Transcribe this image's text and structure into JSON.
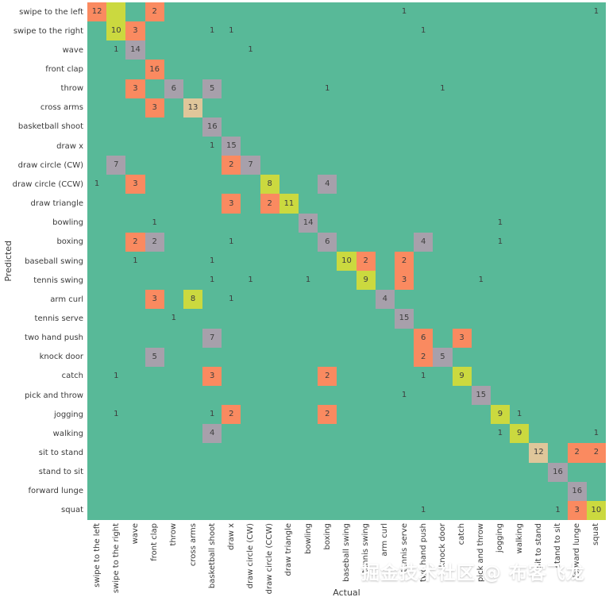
{
  "axes": {
    "x_title": "Actual",
    "y_title": "Predicted"
  },
  "watermark": {
    "text": "掘金技术社区 @ 布客飞龙",
    "color": "#ffffff"
  },
  "chart_data": {
    "type": "heatmap",
    "rows_axis": "Predicted",
    "cols_axis": "Actual",
    "background": "#58b998",
    "cell_text_color": "#3d3d3d",
    "cell_colors": {
      "orange": "#fa8a60",
      "gray": "#a7a0ab",
      "green": "#cbd93f",
      "tan": "#dfc69a",
      "teal": "transparent"
    },
    "categories": [
      "swipe to the left",
      "swipe to the right",
      "wave",
      "front clap",
      "throw",
      "cross arms",
      "basketball shoot",
      "draw x",
      "draw circle (CW)",
      "draw circle (CCW)",
      "draw triangle",
      "bowling",
      "boxing",
      "baseball swing",
      "tennis swing",
      "arm curl",
      "tennis serve",
      "two hand push",
      "knock door",
      "catch",
      "pick and throw",
      "jogging",
      "walking",
      "sit to stand",
      "stand to sit",
      "forward lunge",
      "squat"
    ],
    "cells": [
      [
        0,
        0,
        "12",
        "orange"
      ],
      [
        0,
        1,
        "",
        "green"
      ],
      [
        0,
        3,
        "2",
        "orange"
      ],
      [
        0,
        16,
        "1",
        "teal"
      ],
      [
        0,
        26,
        "1",
        "teal"
      ],
      [
        1,
        1,
        "10",
        "green"
      ],
      [
        1,
        2,
        "3",
        "orange"
      ],
      [
        1,
        6,
        "1",
        "teal"
      ],
      [
        1,
        7,
        "1",
        "teal"
      ],
      [
        1,
        17,
        "1",
        "teal"
      ],
      [
        2,
        1,
        "1",
        "teal"
      ],
      [
        2,
        2,
        "14",
        "gray"
      ],
      [
        2,
        8,
        "1",
        "teal"
      ],
      [
        3,
        3,
        "16",
        "orange"
      ],
      [
        4,
        2,
        "3",
        "orange"
      ],
      [
        4,
        4,
        "6",
        "gray"
      ],
      [
        4,
        6,
        "5",
        "gray"
      ],
      [
        4,
        12,
        "1",
        "teal"
      ],
      [
        4,
        18,
        "1",
        "teal"
      ],
      [
        5,
        3,
        "3",
        "orange"
      ],
      [
        5,
        5,
        "13",
        "tan"
      ],
      [
        6,
        6,
        "16",
        "gray"
      ],
      [
        7,
        6,
        "1",
        "teal"
      ],
      [
        7,
        7,
        "15",
        "gray"
      ],
      [
        8,
        1,
        "7",
        "gray"
      ],
      [
        8,
        7,
        "2",
        "orange"
      ],
      [
        8,
        8,
        "7",
        "gray"
      ],
      [
        9,
        0,
        "1",
        "teal"
      ],
      [
        9,
        2,
        "3",
        "orange"
      ],
      [
        9,
        9,
        "8",
        "green"
      ],
      [
        9,
        12,
        "4",
        "gray"
      ],
      [
        10,
        7,
        "3",
        "orange"
      ],
      [
        10,
        9,
        "2",
        "orange"
      ],
      [
        10,
        10,
        "11",
        "green"
      ],
      [
        11,
        3,
        "1",
        "teal"
      ],
      [
        11,
        11,
        "14",
        "gray"
      ],
      [
        11,
        21,
        "1",
        "teal"
      ],
      [
        12,
        2,
        "2",
        "orange"
      ],
      [
        12,
        3,
        "2",
        "gray"
      ],
      [
        12,
        7,
        "1",
        "teal"
      ],
      [
        12,
        12,
        "6",
        "gray"
      ],
      [
        12,
        17,
        "4",
        "gray"
      ],
      [
        12,
        21,
        "1",
        "teal"
      ],
      [
        13,
        2,
        "1",
        "teal"
      ],
      [
        13,
        6,
        "1",
        "teal"
      ],
      [
        13,
        13,
        "10",
        "green"
      ],
      [
        13,
        14,
        "2",
        "orange"
      ],
      [
        13,
        16,
        "2",
        "orange"
      ],
      [
        14,
        6,
        "1",
        "teal"
      ],
      [
        14,
        8,
        "1",
        "teal"
      ],
      [
        14,
        11,
        "1",
        "teal"
      ],
      [
        14,
        14,
        "9",
        "green"
      ],
      [
        14,
        16,
        "3",
        "orange"
      ],
      [
        14,
        20,
        "1",
        "teal"
      ],
      [
        15,
        3,
        "3",
        "orange"
      ],
      [
        15,
        5,
        "8",
        "green"
      ],
      [
        15,
        7,
        "1",
        "teal"
      ],
      [
        15,
        15,
        "4",
        "gray"
      ],
      [
        16,
        4,
        "1",
        "teal"
      ],
      [
        16,
        16,
        "15",
        "gray"
      ],
      [
        17,
        6,
        "7",
        "gray"
      ],
      [
        17,
        17,
        "6",
        "orange"
      ],
      [
        17,
        19,
        "3",
        "orange"
      ],
      [
        18,
        3,
        "5",
        "gray"
      ],
      [
        18,
        17,
        "2",
        "orange"
      ],
      [
        18,
        18,
        "5",
        "gray"
      ],
      [
        19,
        1,
        "1",
        "teal"
      ],
      [
        19,
        6,
        "3",
        "orange"
      ],
      [
        19,
        12,
        "2",
        "orange"
      ],
      [
        19,
        17,
        "1",
        "teal"
      ],
      [
        19,
        19,
        "9",
        "green"
      ],
      [
        20,
        16,
        "1",
        "teal"
      ],
      [
        20,
        20,
        "15",
        "gray"
      ],
      [
        21,
        1,
        "1",
        "teal"
      ],
      [
        21,
        6,
        "1",
        "teal"
      ],
      [
        21,
        7,
        "2",
        "orange"
      ],
      [
        21,
        12,
        "2",
        "orange"
      ],
      [
        21,
        21,
        "9",
        "green"
      ],
      [
        21,
        22,
        "1",
        "teal"
      ],
      [
        22,
        6,
        "4",
        "gray"
      ],
      [
        22,
        21,
        "1",
        "teal"
      ],
      [
        22,
        22,
        "9",
        "green"
      ],
      [
        22,
        26,
        "1",
        "teal"
      ],
      [
        23,
        23,
        "12",
        "tan"
      ],
      [
        23,
        25,
        "2",
        "orange"
      ],
      [
        23,
        26,
        "2",
        "orange"
      ],
      [
        24,
        24,
        "16",
        "gray"
      ],
      [
        25,
        25,
        "16",
        "gray"
      ],
      [
        26,
        17,
        "1",
        "teal"
      ],
      [
        26,
        24,
        "1",
        "teal"
      ],
      [
        26,
        25,
        "3",
        "orange"
      ],
      [
        26,
        26,
        "10",
        "green"
      ]
    ]
  }
}
